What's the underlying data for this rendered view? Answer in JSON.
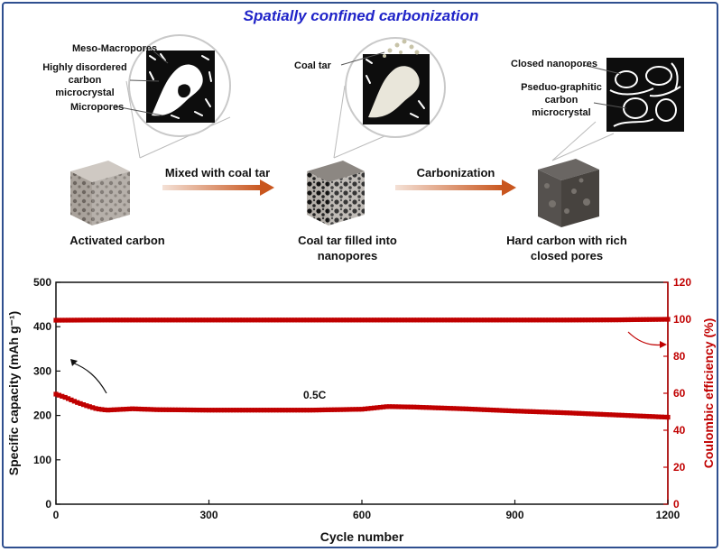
{
  "title": "Spatially confined carbonization",
  "colors": {
    "title": "#1f23c8",
    "accent": "#c00000",
    "arrow": "#d06a3a",
    "frame": "#2f4f8f"
  },
  "stages": [
    {
      "caption": "Activated carbon",
      "callouts": [
        "Meso-Macropores",
        "Highly disordered carbon microcrystal",
        "Micropores"
      ]
    },
    {
      "caption": "Coal tar filled into nanopores",
      "callouts": [
        "Coal tar"
      ]
    },
    {
      "caption": "Hard carbon with rich closed pores",
      "callouts": [
        "Closed nanopores",
        "Pseduo-graphitic carbon microcrystal"
      ]
    }
  ],
  "process": [
    "Mixed with coal tar",
    "Carbonization"
  ],
  "chart_data": {
    "type": "scatter",
    "title": "",
    "xlabel": "Cycle number",
    "ylabel_left": "Specific capacity (mAh g⁻¹)",
    "ylabel_right": "Coulombic efficiency (%)",
    "xlim": [
      0,
      1200
    ],
    "ylim_left": [
      0,
      500
    ],
    "ylim_right": [
      0,
      120
    ],
    "xticks": [
      0,
      300,
      600,
      900,
      1200
    ],
    "yticks_left": [
      0,
      100,
      200,
      300,
      400,
      500
    ],
    "yticks_right": [
      0,
      20,
      40,
      60,
      80,
      100,
      120
    ],
    "annotation": "0.5C",
    "grid": false,
    "series": [
      {
        "axis": "left",
        "color": "#c00000",
        "x": [
          0,
          20,
          40,
          60,
          80,
          100,
          150,
          200,
          300,
          400,
          500,
          550,
          600,
          650,
          700,
          800,
          900,
          1000,
          1100,
          1200
        ],
        "y": [
          248,
          240,
          230,
          222,
          215,
          212,
          215,
          213,
          212,
          212,
          212,
          213,
          214,
          220,
          219,
          215,
          210,
          206,
          201,
          196
        ]
      },
      {
        "axis": "right",
        "color": "#c00000",
        "x": [
          0,
          100,
          200,
          300,
          400,
          500,
          600,
          700,
          800,
          900,
          1000,
          1100,
          1200
        ],
        "y": [
          99.5,
          99.6,
          99.6,
          99.6,
          99.6,
          99.6,
          99.6,
          99.6,
          99.6,
          99.6,
          99.6,
          99.7,
          100
        ]
      }
    ]
  }
}
